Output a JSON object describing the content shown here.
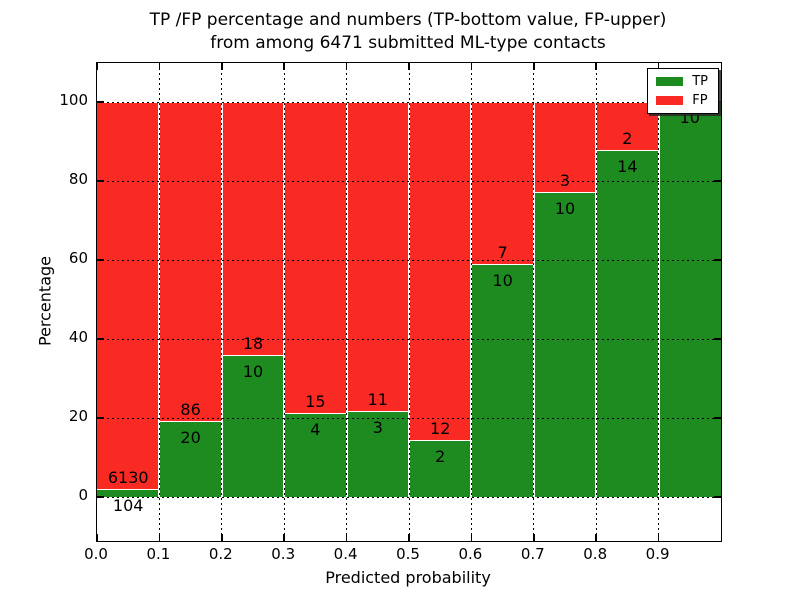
{
  "chart_data": {
    "type": "bar",
    "stacked": true,
    "title": "TP /FP percentage and numbers (TP-bottom value, FP-upper) from among 6471 submitted ML-type contacts",
    "title_lines": [
      "TP /FP percentage and numbers (TP-bottom value, FP-upper)",
      "from among 6471 submitted ML-type contacts"
    ],
    "xlabel": "Predicted probability",
    "ylabel": "Percentage",
    "xlim": [
      0.0,
      1.0
    ],
    "ylim": [
      -11,
      110
    ],
    "grid": "dotted-black",
    "bar_edge_color": "#ffffff",
    "total_contacts": 6471,
    "x_ticks": [
      {
        "value": 0.0,
        "label": "0.0"
      },
      {
        "value": 0.1,
        "label": "0.1"
      },
      {
        "value": 0.2,
        "label": "0.2"
      },
      {
        "value": 0.3,
        "label": "0.3"
      },
      {
        "value": 0.4,
        "label": "0.4"
      },
      {
        "value": 0.5,
        "label": "0.5"
      },
      {
        "value": 0.6,
        "label": "0.6"
      },
      {
        "value": 0.7,
        "label": "0.7"
      },
      {
        "value": 0.8,
        "label": "0.8"
      },
      {
        "value": 0.9,
        "label": "0.9"
      }
    ],
    "y_ticks": [
      {
        "value": 0,
        "label": "0"
      },
      {
        "value": 20,
        "label": "20"
      },
      {
        "value": 40,
        "label": "40"
      },
      {
        "value": 60,
        "label": "60"
      },
      {
        "value": 80,
        "label": "80"
      },
      {
        "value": 100,
        "label": "100"
      }
    ],
    "legend": {
      "position": "upper right",
      "entries": [
        {
          "label": "TP",
          "color": "#1e8b21"
        },
        {
          "label": "FP",
          "color": "#f92a23"
        }
      ]
    },
    "bins": [
      {
        "x_range": [
          0.0,
          0.1
        ],
        "tp_count": "104",
        "fp_count": "6130",
        "tp_pct": 1.67
      },
      {
        "x_range": [
          0.1,
          0.2
        ],
        "tp_count": "20",
        "fp_count": "86",
        "tp_pct": 18.87
      },
      {
        "x_range": [
          0.2,
          0.3
        ],
        "tp_count": "10",
        "fp_count": "18",
        "tp_pct": 35.71
      },
      {
        "x_range": [
          0.3,
          0.4
        ],
        "tp_count": "4",
        "fp_count": "15",
        "tp_pct": 21.05
      },
      {
        "x_range": [
          0.4,
          0.5
        ],
        "tp_count": "3",
        "fp_count": "11",
        "tp_pct": 21.43
      },
      {
        "x_range": [
          0.5,
          0.6
        ],
        "tp_count": "2",
        "fp_count": "12",
        "tp_pct": 14.29
      },
      {
        "x_range": [
          0.6,
          0.7
        ],
        "tp_count": "10",
        "fp_count": "7",
        "tp_pct": 58.82
      },
      {
        "x_range": [
          0.7,
          0.8
        ],
        "tp_count": "10",
        "fp_count": "3",
        "tp_pct": 76.92
      },
      {
        "x_range": [
          0.8,
          0.9
        ],
        "tp_count": "14",
        "fp_count": "2",
        "tp_pct": 87.5
      },
      {
        "x_range": [
          0.9,
          1.0
        ],
        "tp_count": "10",
        "fp_count": "",
        "tp_pct": 100
      }
    ]
  }
}
